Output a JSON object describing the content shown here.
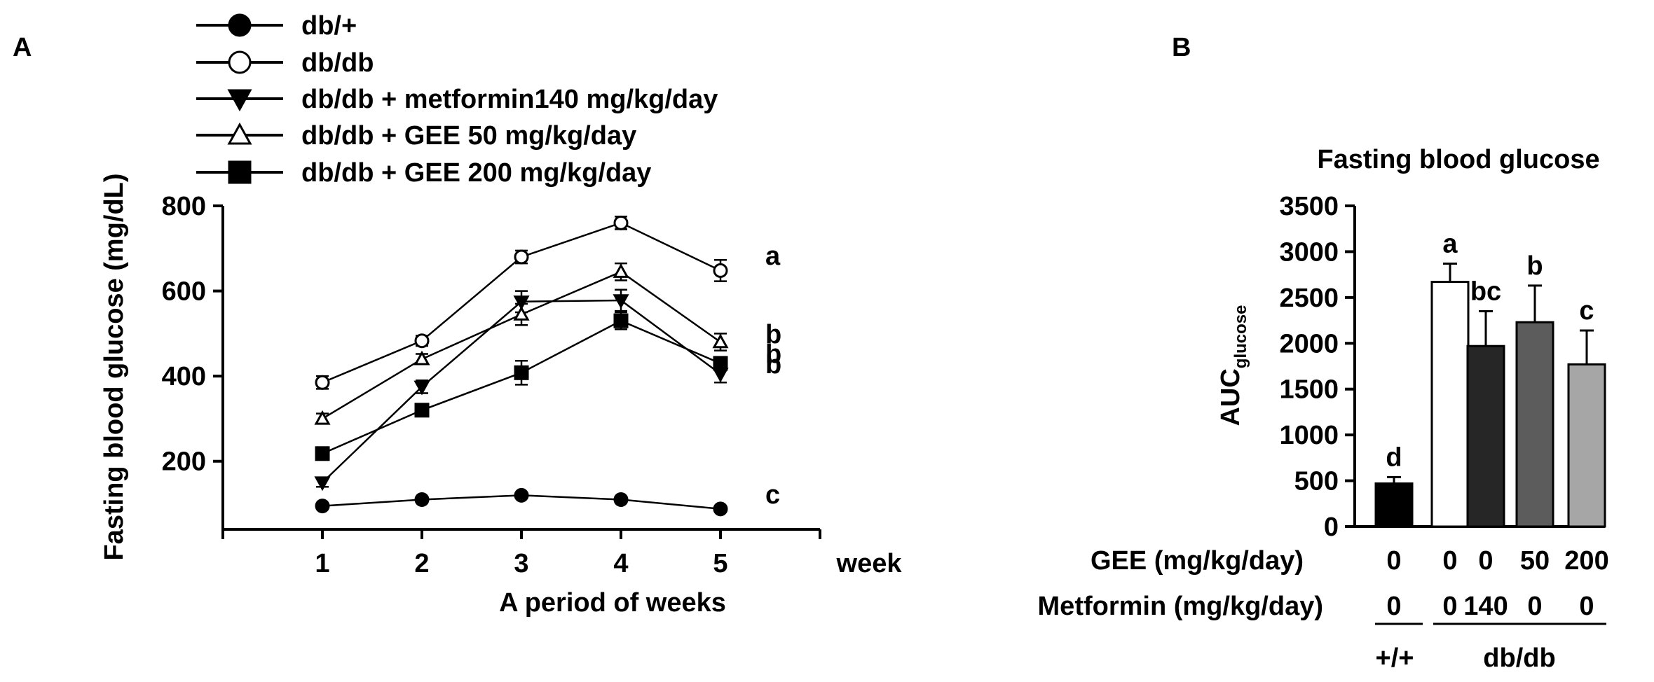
{
  "chart_data": [
    {
      "type": "line",
      "panel_label": "A",
      "title": "",
      "xlabel": "A period of weeks",
      "ylabel": "Fasting blood glucose (mg/dL)",
      "x_unit": "week",
      "x": [
        1,
        2,
        3,
        4,
        5
      ],
      "x_tick_labels": [
        "1",
        "2",
        "3",
        "4",
        "5"
      ],
      "xlim": [
        0,
        6
      ],
      "ylim": [
        40,
        800
      ],
      "y_ticks": [
        200,
        400,
        600,
        800
      ],
      "grid": false,
      "legend_position": "top-left",
      "series": [
        {
          "name": "db/+",
          "marker": "filled-circle",
          "values": [
            95,
            110,
            120,
            110,
            88
          ],
          "errors": [
            5,
            5,
            5,
            5,
            5
          ],
          "letter": "c"
        },
        {
          "name": "db/db",
          "marker": "open-circle",
          "values": [
            385,
            483,
            680,
            760,
            648
          ],
          "errors": [
            15,
            12,
            15,
            15,
            25
          ],
          "letter": "a"
        },
        {
          "name": "db/db + metformin140 mg/kg/day",
          "marker": "filled-triangle-down",
          "values": [
            150,
            375,
            575,
            578,
            405
          ],
          "errors": [
            10,
            15,
            25,
            25,
            20
          ],
          "letter": "b"
        },
        {
          "name": "db/db + GEE 50 mg/kg/day",
          "marker": "open-triangle-up",
          "values": [
            300,
            440,
            545,
            645,
            480
          ],
          "errors": [
            12,
            12,
            25,
            20,
            20
          ],
          "letter": "b"
        },
        {
          "name": "db/db + GEE 200 mg/kg/day",
          "marker": "filled-square",
          "values": [
            218,
            320,
            408,
            530,
            430
          ],
          "errors": [
            8,
            10,
            28,
            20,
            15
          ],
          "letter": "b"
        }
      ]
    },
    {
      "type": "bar",
      "panel_label": "B",
      "title": "Fasting blood glucose",
      "ylabel_main": "AUC",
      "ylabel_sub": "glucose",
      "ylim": [
        0,
        3500
      ],
      "y_ticks": [
        0,
        500,
        1000,
        1500,
        2000,
        2500,
        3000,
        3500
      ],
      "grid": false,
      "values": [
        470,
        2670,
        1970,
        2230,
        1770
      ],
      "errors": [
        70,
        200,
        380,
        400,
        370
      ],
      "letters": [
        "d",
        "a",
        "bc",
        "b",
        "c"
      ],
      "colors": [
        "#000000",
        "#ffffff",
        "#262626",
        "#5c5c5c",
        "#a6a6a6"
      ],
      "row1_label": "GEE (mg/kg/day)",
      "row1_values": [
        "0",
        "0",
        "0",
        "50",
        "200"
      ],
      "row2_label": "Metformin (mg/kg/day)",
      "row2_values": [
        "0",
        "0",
        "140",
        "0",
        "0"
      ],
      "group_labels": [
        "+/+",
        "db/db"
      ]
    }
  ]
}
